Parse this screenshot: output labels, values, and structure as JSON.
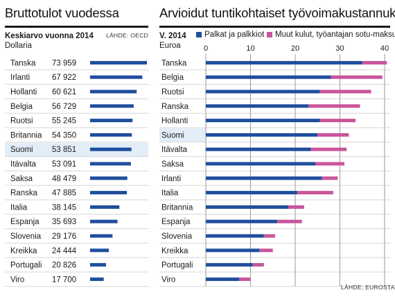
{
  "left": {
    "title": "Bruttotulot vuodessa",
    "subtitle": "Keskiarvo vuonna 2014",
    "unit": "Dollaria",
    "source": "LÄHDE: OECD"
  },
  "right": {
    "title": "Arvioidut tuntikohtaiset työvoimakustannukset",
    "subtitle": "V. 2014",
    "unit": "Euroa",
    "source": "LÄHDE: EUROSTAT"
  },
  "colors": {
    "blue": "#1f4e9c",
    "pink": "#c9559b",
    "highlight": "#e3edf7",
    "row_line": "#d5d5d5",
    "grid": "#9a9a9a"
  },
  "chart_data": [
    {
      "type": "bar",
      "title": "Bruttotulot vuodessa",
      "subtitle": "Keskiarvo vuonna 2014",
      "unit": "Dollaria",
      "highlight": "Suomi",
      "categories": [
        "Tanska",
        "Irlanti",
        "Hollanti",
        "Belgia",
        "Ruotsi",
        "Britannia",
        "Suomi",
        "Itävalta",
        "Saksa",
        "Ranska",
        "Italia",
        "Espanja",
        "Slovenia",
        "Kreikka",
        "Portugali",
        "Viro"
      ],
      "values": [
        73959,
        67922,
        60621,
        56729,
        55245,
        54350,
        53851,
        53091,
        48479,
        47885,
        38145,
        35693,
        29176,
        24444,
        20826,
        17700
      ],
      "labels": [
        "73 959",
        "67 922",
        "60 621",
        "56 729",
        "55 245",
        "54 350",
        "53 851",
        "53 091",
        "48 479",
        "47 885",
        "38 145",
        "35 693",
        "29 176",
        "24 444",
        "20 826",
        "17 700"
      ]
    },
    {
      "type": "bar",
      "stacked": true,
      "orientation": "horizontal",
      "title": "Arvioidut tuntikohtaiset työvoimakustannukset",
      "subtitle": "V. 2014",
      "unit": "Euroa",
      "highlight": "Suomi",
      "xlim": [
        0,
        40
      ],
      "xticks": [
        0,
        10,
        20,
        30,
        40
      ],
      "grid": true,
      "categories": [
        "Tanska",
        "Belgia",
        "Ruotsi",
        "Ranska",
        "Hollanti",
        "Suomi",
        "Itävalta",
        "Saksa",
        "Irlanti",
        "Italia",
        "Britannia",
        "Espanja",
        "Slovenia",
        "Kreikka",
        "Portugali",
        "Viro"
      ],
      "series": [
        {
          "name": "Palkat ja palkkiot",
          "color": "#1f4e9c",
          "values": [
            35.0,
            28.0,
            25.5,
            23.0,
            25.5,
            25.0,
            23.5,
            24.5,
            26.0,
            20.5,
            18.5,
            16.0,
            13.0,
            12.0,
            10.5,
            7.5
          ]
        },
        {
          "name": "Muut kulut, työantajan sotu-maksut",
          "color": "#c9559b",
          "values": [
            5.5,
            11.5,
            11.5,
            11.5,
            8.0,
            7.0,
            8.0,
            6.5,
            3.5,
            8.0,
            3.5,
            5.5,
            2.5,
            3.0,
            2.5,
            2.5
          ]
        }
      ]
    }
  ]
}
